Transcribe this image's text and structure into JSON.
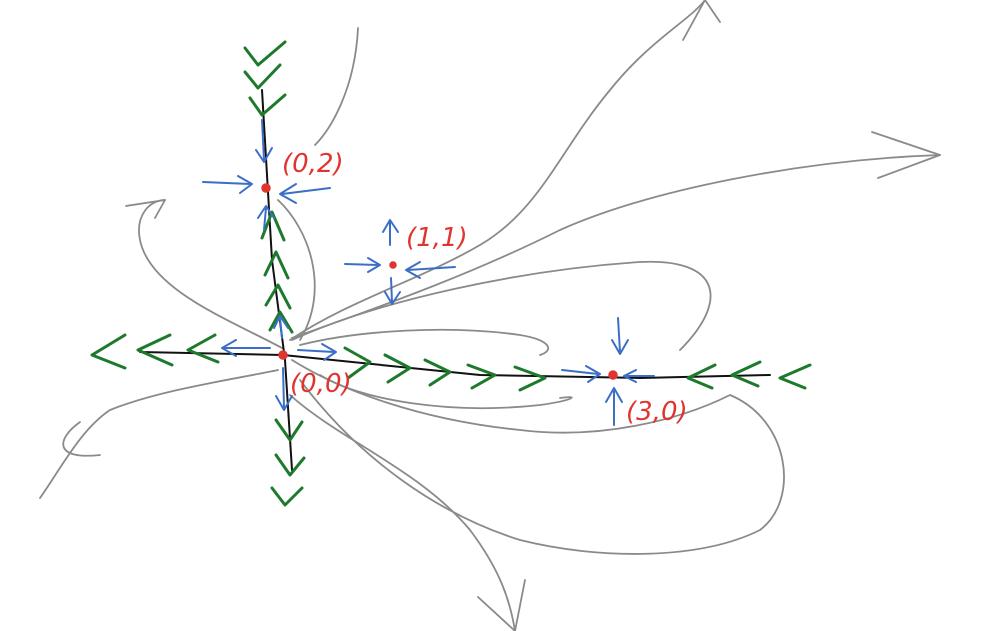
{
  "diagram": {
    "colors": {
      "axes": "#111111",
      "trajectories": "#8a8a8a",
      "axis_flow_arrows": "#1d7a2c",
      "local_flow_arrows": "#3b6fc6",
      "equilibria": "#e0342f"
    },
    "equilibria": [
      {
        "label": "(0,2)"
      },
      {
        "label": "(1,1)"
      },
      {
        "label": "(0,0)"
      },
      {
        "label": "(3,0)"
      }
    ]
  }
}
